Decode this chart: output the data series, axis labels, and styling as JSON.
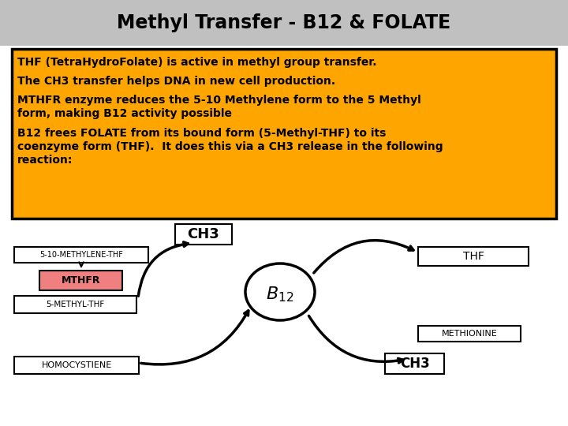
{
  "title": "Methyl Transfer - B12 & FOLATE",
  "title_bg": "#c0c0c0",
  "title_fontsize": 17,
  "box_bg": "#FFA500",
  "line1": "THF (TetraHydroFolate) is active in methyl group transfer.",
  "line2": "The CH3 transfer helps DNA in new cell production.",
  "line3a": "MTHFR enzyme reduces the 5-10 Methylene form to the 5 Methyl",
  "line3b": "form, making B12 activity possible",
  "line4a": "B12 frees FOLATE from its bound form (5-Methyl-THF) to its",
  "line4b": "coenzyme form (THF).  It does this via a CH3 release in the following",
  "line4c": "reaction:",
  "diagram_bg": "#ffffff",
  "label_510": "5-10-METHYLENE-THF",
  "label_mthfr": "MTHFR",
  "label_5methyl": "5-METHYL-THF",
  "label_homocys": "HOMOCYSTIENE",
  "label_ch3_top": "CH3",
  "label_thf": "THF",
  "label_methionine": "METHIONINE",
  "label_ch3_bot": "CH3",
  "mthfr_bg": "#f08080"
}
